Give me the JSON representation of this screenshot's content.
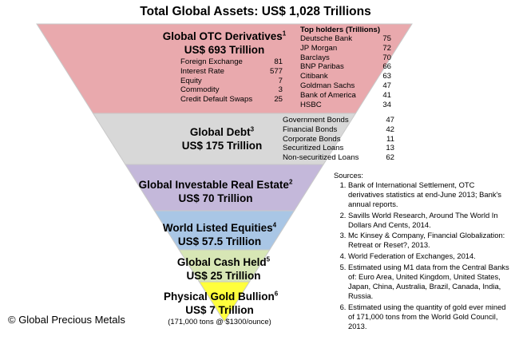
{
  "title": "Total Global Assets: US$ 1,028 Trillions",
  "colors": {
    "derivatives": "#e9a9ad",
    "debt": "#d8d8d8",
    "real_estate": "#c4b8da",
    "equities": "#a9c6e5",
    "cash": "#d7e6b5",
    "gold": "#ffff3c",
    "border": "#c9c9c9"
  },
  "layers": [
    {
      "key": "derivatives",
      "name": "Global OTC Derivatives",
      "sup": "1",
      "amount": "US$ 693 Trillion"
    },
    {
      "key": "debt",
      "name": "Global Debt",
      "sup": "3",
      "amount": "US$ 175 Trillion"
    },
    {
      "key": "real_estate",
      "name": "Global Investable Real Estate",
      "sup": "2",
      "amount": "US$ 70 Trillion"
    },
    {
      "key": "equities",
      "name": "World Listed Equities",
      "sup": "4",
      "amount": "US$ 57.5 Trillion"
    },
    {
      "key": "cash",
      "name": "Global Cash Held",
      "sup": "5",
      "amount": "US$ 25 Trillion"
    },
    {
      "key": "gold",
      "name": "Physical Gold Bullion",
      "sup": "6",
      "amount": "US$ 7 Trillion"
    }
  ],
  "derivatives_breakdown": [
    {
      "name": "Foreign Exchange",
      "value": "81"
    },
    {
      "name": "Interest Rate",
      "value": "577"
    },
    {
      "name": "Equity",
      "value": "7"
    },
    {
      "name": "Commodity",
      "value": "3"
    },
    {
      "name": "Credit Default Swaps",
      "value": "25"
    }
  ],
  "top_holders_header": "Top holders (Trillions)",
  "top_holders": [
    {
      "name": "Deutsche Bank",
      "value": "75"
    },
    {
      "name": "JP Morgan",
      "value": "72"
    },
    {
      "name": "Barclays",
      "value": "70"
    },
    {
      "name": "BNP Paribas",
      "value": "66"
    },
    {
      "name": "Citibank",
      "value": "63"
    },
    {
      "name": "Goldman Sachs",
      "value": "47"
    },
    {
      "name": "Bank of America",
      "value": "41"
    },
    {
      "name": "HSBC",
      "value": "34"
    }
  ],
  "debt_breakdown": [
    {
      "name": "Government Bonds",
      "value": "47"
    },
    {
      "name": "Financial Bonds",
      "value": "42"
    },
    {
      "name": "Corporate Bonds",
      "value": "11"
    },
    {
      "name": "Securitized Loans",
      "value": "13"
    },
    {
      "name": "Non-securitized Loans",
      "value": "62"
    }
  ],
  "sources_label": "Sources:",
  "sources": [
    "Bank of International Settlement, OTC derivatives statistics at end-June 2013; Bank's annual reports.",
    "Savills World Research, Around The World In Dollars And Cents, 2014.",
    "Mc Kinsey & Company, Financial Globalization: Retreat or Reset?, 2013.",
    "World Federation of Exchanges, 2014.",
    "Estimated using M1 data from the Central Banks of: Euro Area, United Kingdom, United States, Japan, China, Australia, Brazil, Canada, India, Russia.",
    "Estimated using the quantity of gold ever mined of 171,000 tons from the World Gold Council, 2013."
  ],
  "gold_note": "(171,000 tons @ $1300/ounce)",
  "copyright": "© Global Precious Metals"
}
